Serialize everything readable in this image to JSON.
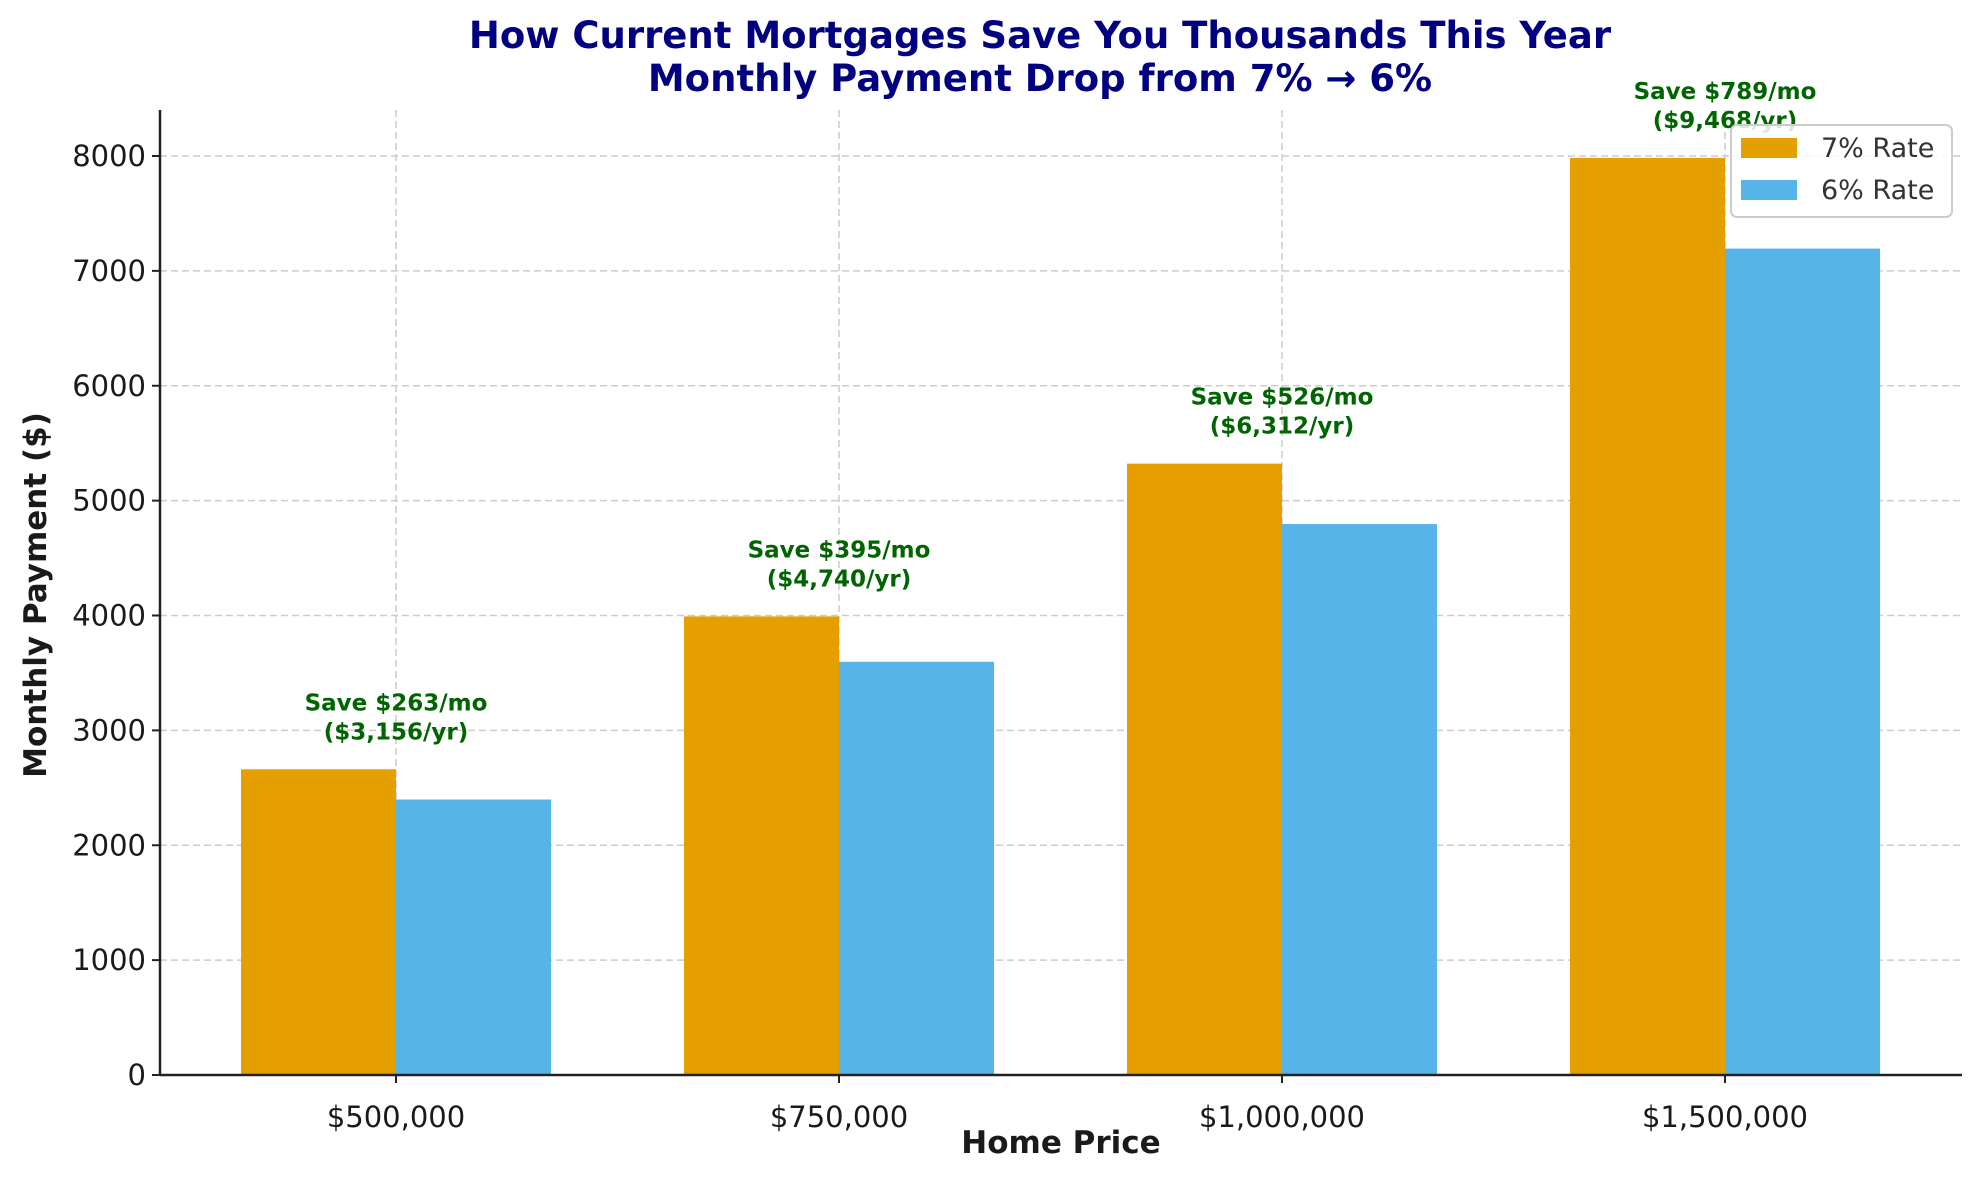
{
  "title_line1": "How Current Mortgages Save You Thousands This Year",
  "title_line2": "Monthly Payment Drop from 7% → 6%",
  "xlabel": "Home Price",
  "ylabel": "Monthly Payment ($)",
  "yticks": [
    "0",
    "1000",
    "2000",
    "3000",
    "4000",
    "5000",
    "6000",
    "7000",
    "8000"
  ],
  "categories": [
    "$500,000",
    "$750,000",
    "$1,000,000",
    "$1,500,000"
  ],
  "legend": [
    "7% Rate",
    "6% Rate"
  ],
  "annotations": [
    {
      "line1": "Save $263/mo",
      "line2": "($3,156/yr)"
    },
    {
      "line1": "Save $395/mo",
      "line2": "($4,740/yr)"
    },
    {
      "line1": "Save $526/mo",
      "line2": "($6,312/yr)"
    },
    {
      "line1": "Save $789/mo",
      "line2": "($9,468/yr)"
    }
  ],
  "colors": {
    "rate7": "#E69F00",
    "rate6": "#56B4E9",
    "title": "#000080",
    "annotation": "#006400"
  },
  "chart_data": {
    "type": "bar",
    "title": "How Current Mortgages Save You Thousands This Year\nMonthly Payment Drop from 7% → 6%",
    "xlabel": "Home Price",
    "ylabel": "Monthly Payment ($)",
    "categories": [
      "$500,000",
      "$750,000",
      "$1,000,000",
      "$1,500,000"
    ],
    "series": [
      {
        "name": "7% Rate",
        "color": "#E69F00",
        "values": [
          2661,
          3992,
          5322,
          7983
        ]
      },
      {
        "name": "6% Rate",
        "color": "#56B4E9",
        "values": [
          2398,
          3597,
          4796,
          7194
        ]
      }
    ],
    "annotations": [
      "Save $263/mo ($3,156/yr)",
      "Save $395/mo ($4,740/yr)",
      "Save $526/mo ($6,312/yr)",
      "Save $789/mo ($9,468/yr)"
    ],
    "ylim": [
      0,
      8400
    ],
    "yticks": [
      0,
      1000,
      2000,
      3000,
      4000,
      5000,
      6000,
      7000,
      8000
    ],
    "grid": true,
    "grid_style": "dashed",
    "legend_position": "upper right"
  }
}
